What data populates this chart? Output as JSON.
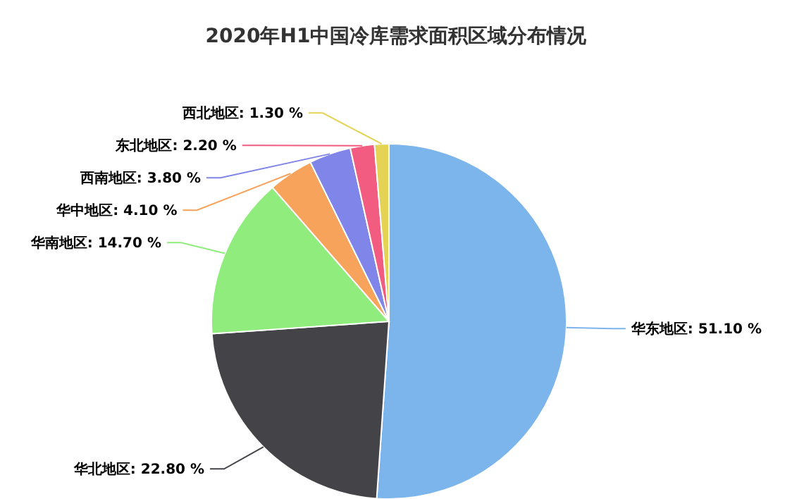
{
  "chart_data": {
    "type": "pie",
    "title": "2020年H1中国冷库需求面积区域分布情况",
    "categories": [
      "华东地区",
      "华北地区",
      "华南地区",
      "华中地区",
      "西南地区",
      "东北地区",
      "西北地区"
    ],
    "values": [
      51.1,
      22.8,
      14.7,
      4.1,
      3.8,
      2.2,
      1.3
    ],
    "value_labels": [
      "51.10 %",
      "22.80 %",
      "14.70 %",
      "4.10 %",
      "3.80 %",
      "2.20 %",
      "1.30 %"
    ],
    "colors": [
      "#7cb5ec",
      "#434348",
      "#90ed7d",
      "#f7a35c",
      "#8085e9",
      "#f15c80",
      "#e4d354"
    ]
  }
}
